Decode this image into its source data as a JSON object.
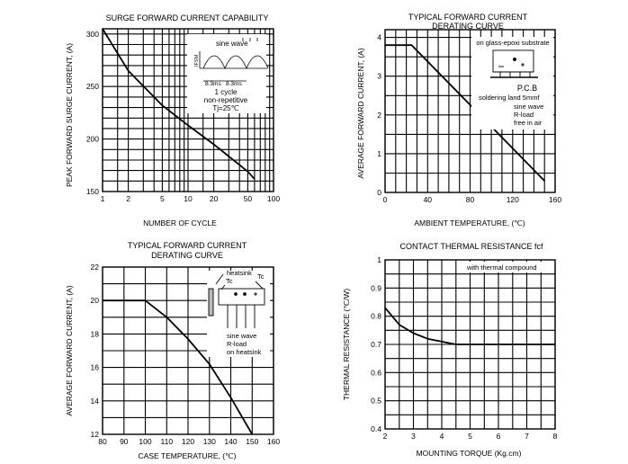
{
  "chart_data": [
    {
      "type": "line",
      "title": "SURGE FORWARD CURRENT CAPABILITY",
      "xlabel": "NUMBER OF CYCLE",
      "ylabel": "PEAK FORWARD SURGE CURRENT, (A)",
      "xscale": "log",
      "xlim": [
        1,
        100
      ],
      "ylim": [
        150,
        305
      ],
      "xticks": [
        1,
        2,
        5,
        10,
        20,
        50,
        100
      ],
      "xtick_labels": [
        "1",
        "2",
        "5",
        "10",
        "20",
        "50",
        "100"
      ],
      "yticks": [
        150,
        200,
        250,
        300
      ],
      "ytick_labels": [
        "150",
        "200",
        "250",
        "300"
      ],
      "grid": true,
      "series": [
        {
          "x": [
            1,
            2,
            5,
            10,
            20,
            50,
            60
          ],
          "y": [
            305,
            265,
            232,
            213,
            195,
            169,
            162
          ]
        }
      ],
      "annotations": {
        "waveform_label": "sine wave",
        "axis_symbol": "IFSM",
        "period_left": "8.3ms",
        "period_right": "8.3ms",
        "lines": [
          "1 cycle",
          "non-repetitive",
          "Tj=25℃"
        ]
      }
    },
    {
      "type": "line",
      "title": "TYPICAL FORWARD CURRENT",
      "subtitle": "DERATING CURVE",
      "xlabel": "AMBIENT TEMPERATURE, (℃)",
      "ylabel": "AVERAGE FORWARD CURRENT, (A)",
      "xlim": [
        0,
        160
      ],
      "ylim": [
        0,
        4.2
      ],
      "xticks": [
        0,
        40,
        80,
        120,
        160
      ],
      "xtick_labels": [
        "0",
        "40",
        "80",
        "120",
        "160"
      ],
      "yticks": [
        0,
        1,
        2,
        3,
        4
      ],
      "ytick_labels": [
        "0",
        "1",
        "2",
        "3",
        "4"
      ],
      "grid": true,
      "series": [
        {
          "x": [
            0,
            25,
            150
          ],
          "y": [
            3.8,
            3.8,
            0.3
          ]
        }
      ],
      "annotations": {
        "mount": "on glass-epoxi substrate",
        "board": "P.C.B",
        "lines": [
          "soldering land 5mmf",
          "sine wave",
          "R-load",
          "free in air"
        ]
      }
    },
    {
      "type": "line",
      "title": "TYPICAL FORWARD CURRENT",
      "subtitle": "DERATING CURVE",
      "xlabel": "CASE TEMPERATURE, (℃)",
      "ylabel": "AVERAGE FORWARD CURRENT, (A)",
      "xlim": [
        80,
        160
      ],
      "ylim": [
        12,
        22
      ],
      "xticks": [
        80,
        90,
        100,
        110,
        120,
        130,
        140,
        150,
        160
      ],
      "xtick_labels": [
        "80",
        "90",
        "100",
        "110",
        "120",
        "130",
        "140",
        "150",
        "160"
      ],
      "yticks": [
        12,
        14,
        16,
        18,
        20,
        22
      ],
      "ytick_labels": [
        "12",
        "14",
        "16",
        "18",
        "20",
        "22"
      ],
      "grid": true,
      "series": [
        {
          "x": [
            80,
            100,
            110,
            120,
            130,
            140,
            150
          ],
          "y": [
            20,
            20,
            19,
            17.7,
            16.2,
            14.2,
            12
          ]
        }
      ],
      "annotations": {
        "heatsink": "heatsink",
        "case_left": "Tc",
        "case_right": "Tc",
        "lines": [
          "sine wave",
          "R-load",
          "on heatsink"
        ]
      }
    },
    {
      "type": "line",
      "title": "CONTACT THERMAL RESISTANCE fcf",
      "xlabel": "MOUNTING TORQUE (Kg.cm)",
      "ylabel": "THERMAL RESISTANCE (℃/W)",
      "xlim": [
        2,
        8
      ],
      "ylim": [
        0.4,
        1.0
      ],
      "xticks": [
        2,
        3,
        4,
        5,
        6,
        7,
        8
      ],
      "xtick_labels": [
        "2",
        "3",
        "4",
        "5",
        "6",
        "7",
        "8"
      ],
      "yticks": [
        0.4,
        0.5,
        0.6,
        0.7,
        0.8,
        0.9,
        1.0
      ],
      "ytick_labels": [
        "0.4",
        "0.5",
        "0.6",
        "0.7",
        "0.8",
        "0.9",
        "1"
      ],
      "grid": true,
      "series": [
        {
          "x": [
            2,
            2.5,
            3,
            3.5,
            4,
            4.5,
            5,
            6,
            7,
            8
          ],
          "y": [
            0.83,
            0.77,
            0.74,
            0.72,
            0.71,
            0.7,
            0.7,
            0.7,
            0.7,
            0.7
          ]
        }
      ],
      "annotations": {
        "note": "with thermal compound"
      }
    }
  ]
}
